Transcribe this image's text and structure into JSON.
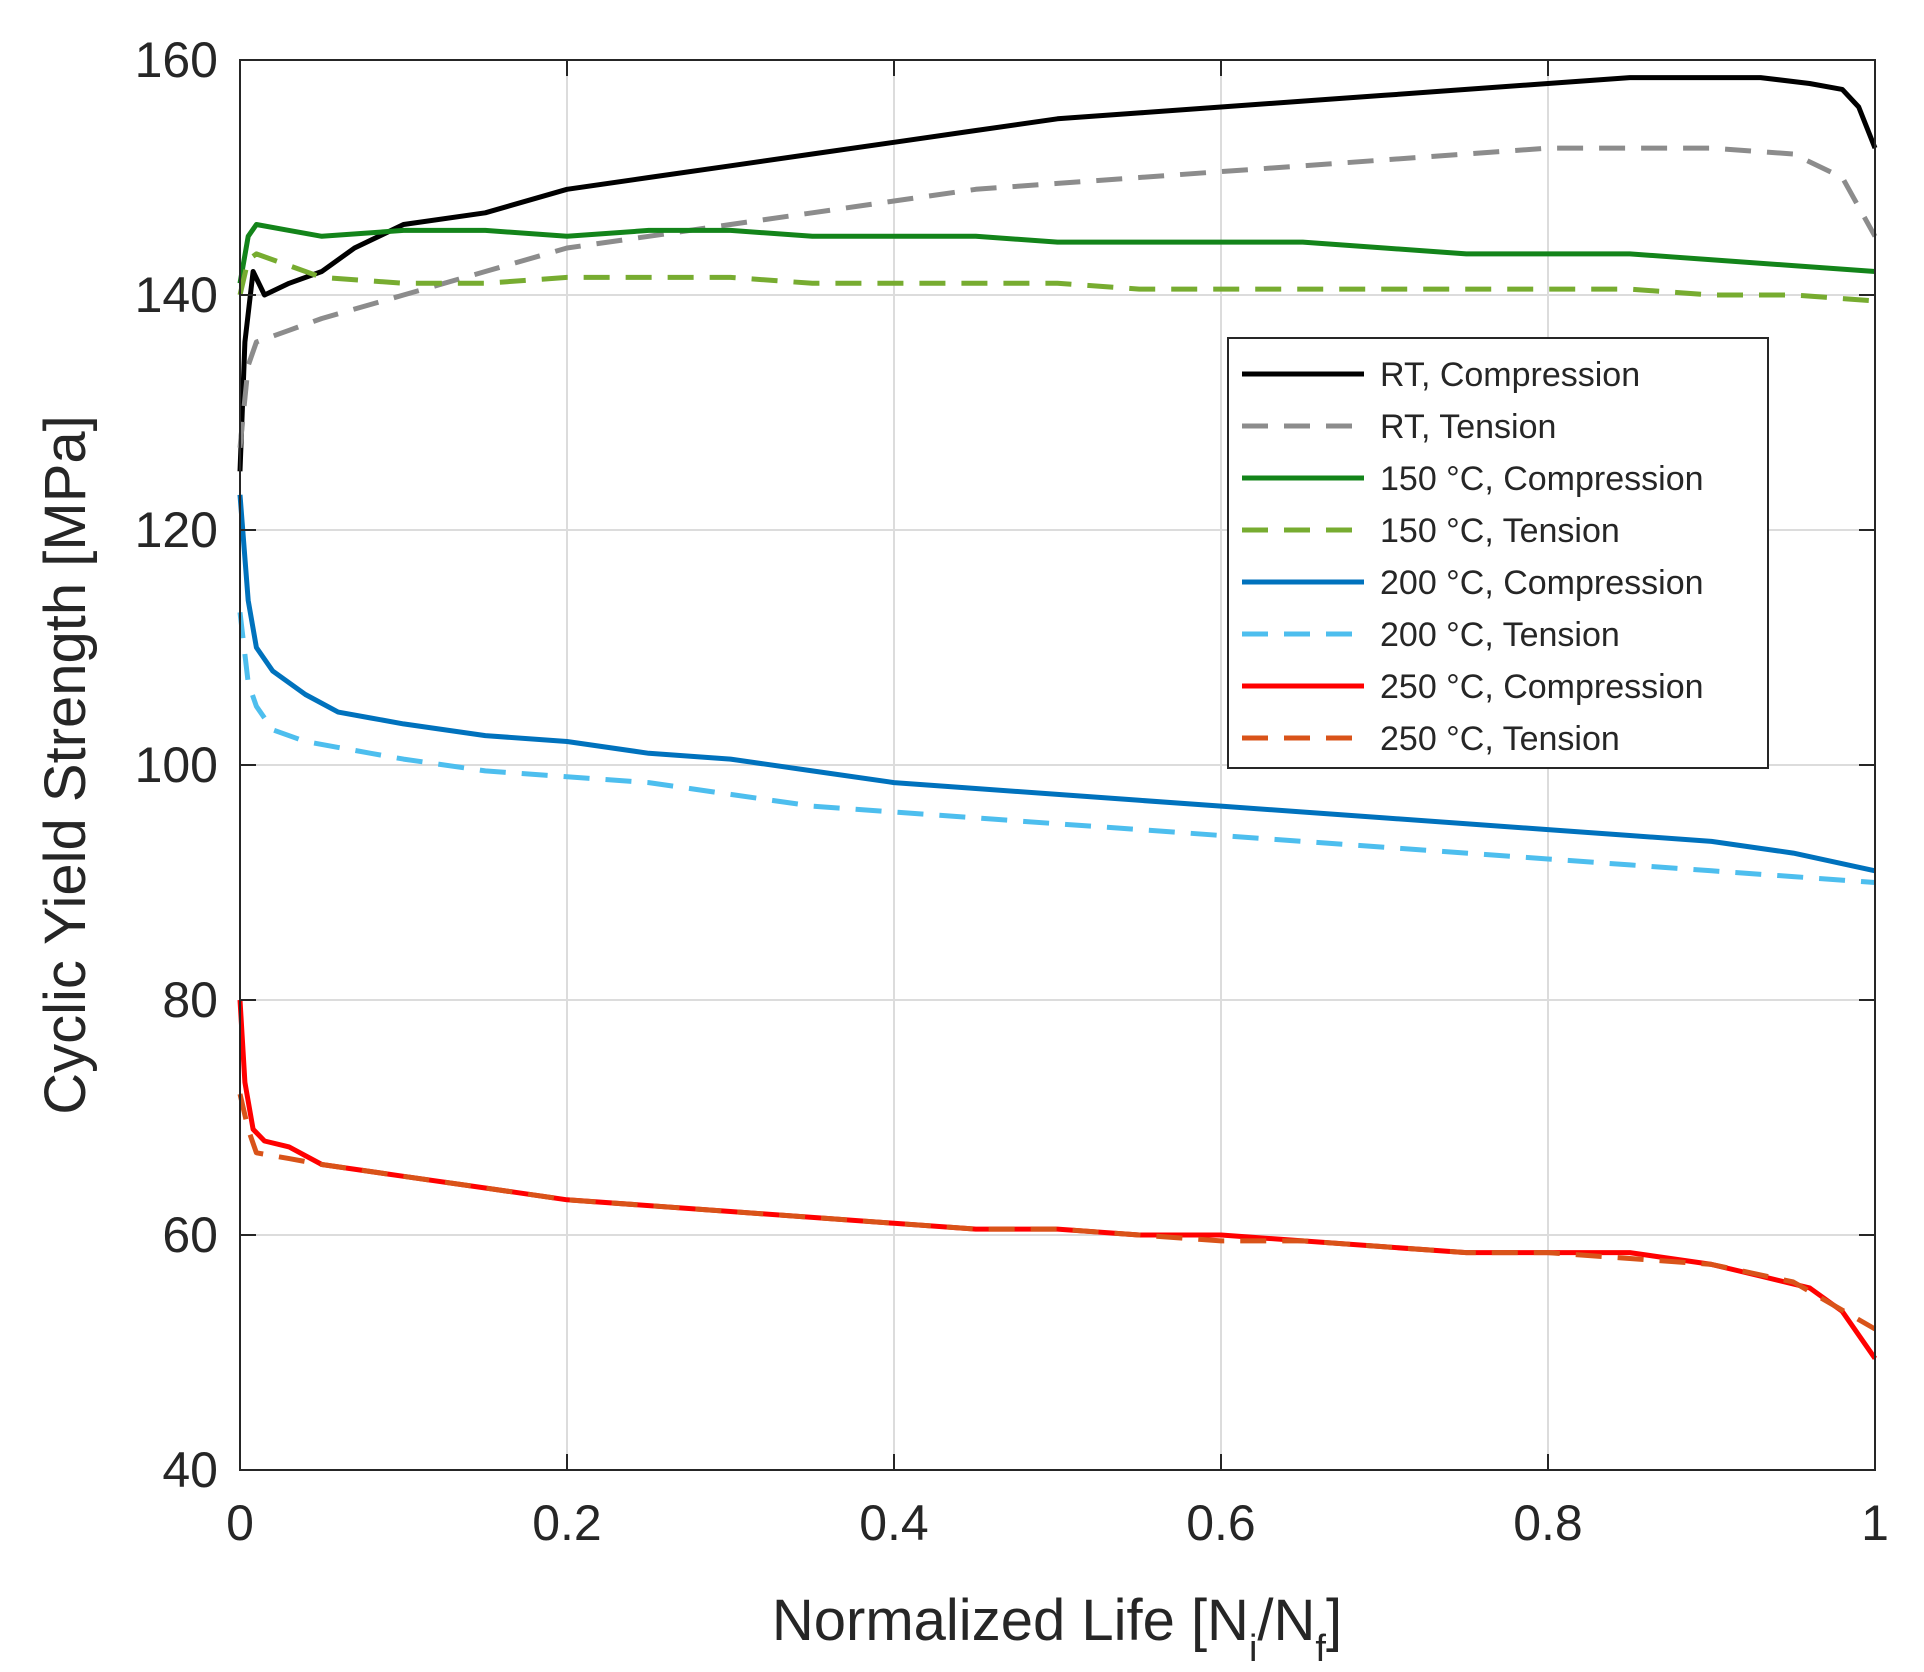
{
  "chart_data": {
    "type": "line",
    "title": "",
    "xlabel": "Normalized Life [N_i/N_f]",
    "xlabel_parts": {
      "prefix": "Normalized Life [N",
      "sub1": "i",
      "mid": "/N",
      "sub2": "f",
      "suffix": "]"
    },
    "ylabel": "Cyclic Yield Strength [MPa]",
    "xlim": [
      0,
      1
    ],
    "ylim": [
      40,
      160
    ],
    "xticks": [
      0,
      0.2,
      0.4,
      0.6,
      0.8,
      1
    ],
    "xtick_labels": [
      "0",
      "0.2",
      "0.4",
      "0.6",
      "0.8",
      "1"
    ],
    "yticks": [
      40,
      60,
      80,
      100,
      120,
      140,
      160
    ],
    "ytick_labels": [
      "40",
      "60",
      "80",
      "100",
      "120",
      "140",
      "160"
    ],
    "grid": true,
    "legend_position": "right",
    "series": [
      {
        "name": "RT, Compression",
        "color": "#000000",
        "dash": "solid",
        "x": [
          0,
          0.003,
          0.008,
          0.015,
          0.03,
          0.05,
          0.07,
          0.1,
          0.15,
          0.2,
          0.25,
          0.3,
          0.35,
          0.4,
          0.45,
          0.5,
          0.55,
          0.6,
          0.65,
          0.7,
          0.75,
          0.8,
          0.85,
          0.9,
          0.93,
          0.96,
          0.98,
          0.99,
          1.0
        ],
        "y": [
          125,
          136,
          142,
          140,
          141,
          142,
          144,
          146,
          147,
          149,
          150,
          151,
          152,
          153,
          154,
          155,
          155.5,
          156,
          156.5,
          157,
          157.5,
          158,
          158.5,
          158.5,
          158.5,
          158,
          157.5,
          156,
          152.5
        ]
      },
      {
        "name": "RT, Tension",
        "color": "#8c8c8c",
        "dash": "dashed",
        "x": [
          0,
          0.005,
          0.01,
          0.03,
          0.05,
          0.1,
          0.15,
          0.2,
          0.25,
          0.3,
          0.35,
          0.4,
          0.45,
          0.5,
          0.55,
          0.6,
          0.65,
          0.7,
          0.75,
          0.8,
          0.85,
          0.9,
          0.95,
          0.98,
          1.0
        ],
        "y": [
          127,
          134,
          136,
          137,
          138,
          140,
          142,
          144,
          145,
          146,
          147,
          148,
          149,
          149.5,
          150,
          150.5,
          151,
          151.5,
          152,
          152.5,
          152.5,
          152.5,
          152,
          150,
          145
        ]
      },
      {
        "name": "150 °C, Compression",
        "color": "#13841a",
        "dash": "solid",
        "x": [
          0,
          0.005,
          0.01,
          0.03,
          0.05,
          0.1,
          0.15,
          0.2,
          0.25,
          0.3,
          0.35,
          0.4,
          0.45,
          0.5,
          0.55,
          0.6,
          0.65,
          0.7,
          0.75,
          0.8,
          0.85,
          0.9,
          0.95,
          1.0
        ],
        "y": [
          141,
          145,
          146,
          145.5,
          145,
          145.5,
          145.5,
          145,
          145.5,
          145.5,
          145,
          145,
          145,
          144.5,
          144.5,
          144.5,
          144.5,
          144,
          143.5,
          143.5,
          143.5,
          143,
          142.5,
          142
        ]
      },
      {
        "name": "150 °C, Tension",
        "color": "#77ac30",
        "dash": "dashed",
        "x": [
          0,
          0.005,
          0.01,
          0.03,
          0.05,
          0.1,
          0.15,
          0.2,
          0.25,
          0.3,
          0.35,
          0.4,
          0.45,
          0.5,
          0.55,
          0.6,
          0.65,
          0.7,
          0.75,
          0.8,
          0.85,
          0.9,
          0.95,
          1.0
        ],
        "y": [
          140,
          143,
          143.5,
          142.5,
          141.5,
          141,
          141,
          141.5,
          141.5,
          141.5,
          141,
          141,
          141,
          141,
          140.5,
          140.5,
          140.5,
          140.5,
          140.5,
          140.5,
          140.5,
          140,
          140,
          139.5
        ]
      },
      {
        "name": "200 °C, Compression",
        "color": "#0072bd",
        "dash": "solid",
        "x": [
          0,
          0.005,
          0.01,
          0.02,
          0.04,
          0.06,
          0.08,
          0.1,
          0.15,
          0.2,
          0.25,
          0.3,
          0.35,
          0.4,
          0.45,
          0.5,
          0.55,
          0.6,
          0.65,
          0.7,
          0.75,
          0.8,
          0.85,
          0.9,
          0.95,
          1.0
        ],
        "y": [
          123,
          114,
          110,
          108,
          106,
          104.5,
          104,
          103.5,
          102.5,
          102,
          101,
          100.5,
          99.5,
          98.5,
          98,
          97.5,
          97,
          96.5,
          96,
          95.5,
          95,
          94.5,
          94,
          93.5,
          92.5,
          91
        ]
      },
      {
        "name": "200 °C, Tension",
        "color": "#4dbeee",
        "dash": "dashed",
        "x": [
          0,
          0.005,
          0.01,
          0.02,
          0.04,
          0.06,
          0.08,
          0.1,
          0.15,
          0.2,
          0.25,
          0.3,
          0.35,
          0.4,
          0.45,
          0.5,
          0.55,
          0.6,
          0.65,
          0.7,
          0.75,
          0.8,
          0.85,
          0.9,
          0.95,
          1.0
        ],
        "y": [
          113,
          107,
          105,
          103,
          102,
          101.5,
          101,
          100.5,
          99.5,
          99,
          98.5,
          97.5,
          96.5,
          96,
          95.5,
          95,
          94.5,
          94,
          93.5,
          93,
          92.5,
          92,
          91.5,
          91,
          90.5,
          90
        ]
      },
      {
        "name": "250 °C, Compression",
        "color": "#ff0000",
        "dash": "solid",
        "x": [
          0,
          0.003,
          0.008,
          0.015,
          0.03,
          0.05,
          0.1,
          0.15,
          0.2,
          0.25,
          0.3,
          0.35,
          0.4,
          0.45,
          0.5,
          0.55,
          0.6,
          0.65,
          0.7,
          0.75,
          0.8,
          0.85,
          0.9,
          0.93,
          0.96,
          0.98,
          1.0
        ],
        "y": [
          80,
          73,
          69,
          68,
          67.5,
          66,
          65,
          64,
          63,
          62.5,
          62,
          61.5,
          61,
          60.5,
          60.5,
          60,
          60,
          59.5,
          59,
          58.5,
          58.5,
          58.5,
          57.5,
          56.5,
          55.5,
          53.5,
          49.5
        ]
      },
      {
        "name": "250 °C, Tension",
        "color": "#d95319",
        "dash": "dashed",
        "x": [
          0,
          0.005,
          0.01,
          0.03,
          0.05,
          0.1,
          0.15,
          0.2,
          0.25,
          0.3,
          0.35,
          0.4,
          0.45,
          0.5,
          0.55,
          0.6,
          0.65,
          0.7,
          0.75,
          0.8,
          0.85,
          0.9,
          0.95,
          1.0
        ],
        "y": [
          72,
          69,
          67,
          66.5,
          66,
          65,
          64,
          63,
          62.5,
          62,
          61.5,
          61,
          60.5,
          60.5,
          60,
          59.5,
          59.5,
          59,
          58.5,
          58.5,
          58,
          57.5,
          56,
          52
        ]
      }
    ]
  }
}
